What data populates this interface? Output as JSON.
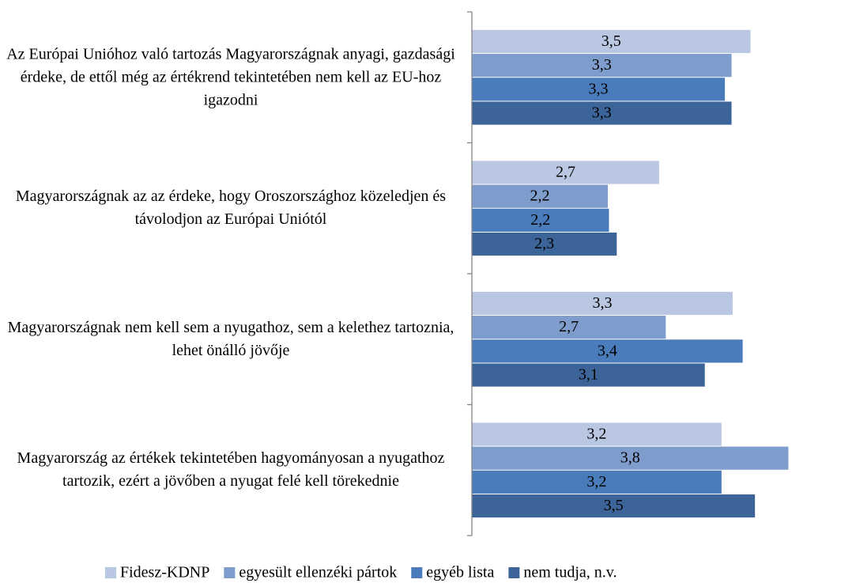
{
  "chart_data": {
    "type": "hbar",
    "categories": [
      "Az Európai Unióhoz való tartozás Magyarországnak anyagi, gazdasági érdeke, de ettől még az értékrend tekintetében nem kell az EU-hoz igazodni",
      "Magyarországnak az az érdeke, hogy Oroszországhoz közeledjen és távolodjon az Európai Uniótól",
      "Magyarországnak nem kell sem a nyugathoz, sem a kelethez tartoznia, lehet önálló jövője",
      "Magyarország az értékek tekintetében hagyományosan a nyugathoz tartozik, ezért a jövőben a nyugat felé kell törekednie"
    ],
    "series": [
      {
        "name": "Fidesz-KDNP",
        "color": "#b9c7e2",
        "values": [
          3.5,
          2.68,
          3.34,
          3.24
        ],
        "value_labels": [
          "3,5",
          "2,7",
          "3,3",
          "3,2"
        ]
      },
      {
        "name": "egyesült ellenzéki pártok",
        "color": "#7f9dcc",
        "values": [
          3.33,
          2.22,
          2.74,
          3.84
        ],
        "value_labels": [
          "3,3",
          "2,2",
          "2,7",
          "3,8"
        ]
      },
      {
        "name": "egyéb lista",
        "color": "#4a7cbb",
        "values": [
          3.27,
          2.23,
          3.43,
          3.24
        ],
        "value_labels": [
          "3,3",
          "2,2",
          "3,4",
          "3,2"
        ]
      },
      {
        "name": "nem tudja, n.v.",
        "color": "#3c6499",
        "values": [
          3.33,
          2.3,
          3.09,
          3.54
        ],
        "value_labels": [
          "3,3",
          "2,3",
          "3,1",
          "3,5"
        ]
      }
    ],
    "xlim": [
      1,
      4
    ],
    "legend": "bottom"
  }
}
